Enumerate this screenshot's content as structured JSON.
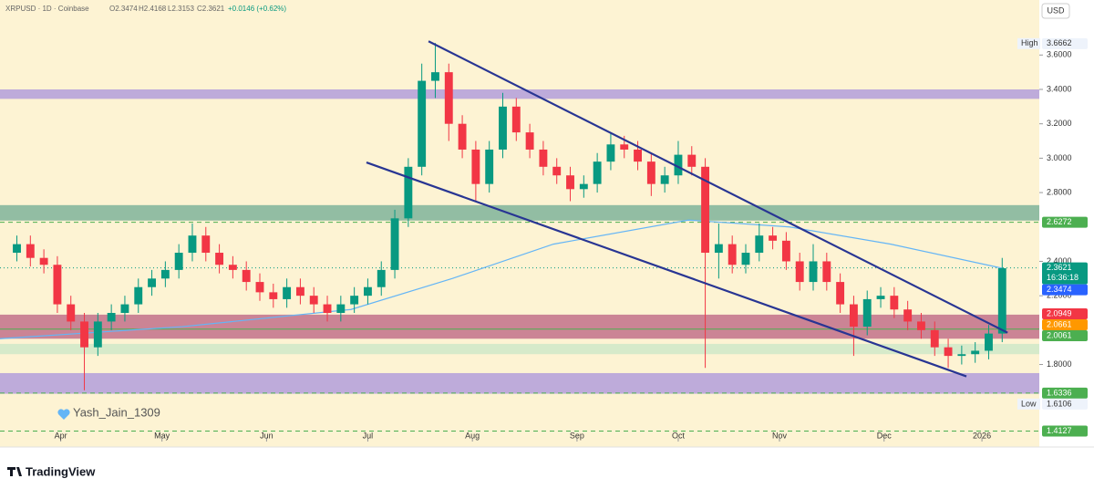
{
  "chart_data": {
    "type": "candlestick",
    "header": {
      "symbol": "XRPUSD · 1D · Coinbase",
      "open": "O2.3474",
      "high": "H2.4168",
      "low": "L2.3153",
      "close": "C2.3621",
      "change": "+0.0146 (+0.62%)"
    },
    "currency": "USD",
    "watermark": "Yash_Jain_1309",
    "brand": "TradingView",
    "up_color": "#089981",
    "down_color": "#f23645",
    "xlim": [
      -4,
      304
    ],
    "ylim": [
      1.32,
      3.92
    ],
    "xticks": [
      {
        "value": 14,
        "label": "Apr"
      },
      {
        "value": 44,
        "label": "May"
      },
      {
        "value": 75,
        "label": "Jun"
      },
      {
        "value": 105,
        "label": "Jul"
      },
      {
        "value": 136,
        "label": "Aug"
      },
      {
        "value": 167,
        "label": "Sep"
      },
      {
        "value": 197,
        "label": "Oct"
      },
      {
        "value": 227,
        "label": "Nov"
      },
      {
        "value": 258,
        "label": "Dec"
      },
      {
        "value": 287,
        "label": "2026"
      }
    ],
    "yticks": [
      {
        "value": 1.8,
        "label": "1.8000"
      },
      {
        "value": 2.2,
        "label": "2.2000"
      },
      {
        "value": 2.4,
        "label": "2.4000"
      },
      {
        "value": 2.8,
        "label": "2.8000"
      },
      {
        "value": 3.0,
        "label": "3.0000"
      },
      {
        "value": 3.2,
        "label": "3.2000"
      },
      {
        "value": 3.4,
        "label": "3.4000"
      },
      {
        "value": 3.6,
        "label": "3.6000"
      }
    ],
    "x": [
      1,
      5,
      9,
      13,
      17,
      21,
      25,
      29,
      33,
      37,
      41,
      45,
      49,
      53,
      57,
      61,
      65,
      69,
      73,
      77,
      81,
      85,
      89,
      93,
      97,
      101,
      105,
      109,
      113,
      117,
      121,
      125,
      129,
      133,
      137,
      141,
      145,
      149,
      153,
      157,
      161,
      165,
      169,
      173,
      177,
      181,
      185,
      189,
      193,
      197,
      201,
      205,
      209,
      213,
      217,
      221,
      225,
      229,
      233,
      237,
      241,
      245,
      249,
      253,
      257,
      261,
      265,
      269,
      273,
      277,
      281,
      285,
      289,
      293
    ],
    "open": [
      2.45,
      2.5,
      2.42,
      2.38,
      2.15,
      2.05,
      1.9,
      2.05,
      2.1,
      2.15,
      2.25,
      2.3,
      2.35,
      2.45,
      2.55,
      2.45,
      2.38,
      2.35,
      2.28,
      2.22,
      2.18,
      2.25,
      2.2,
      2.15,
      2.1,
      2.15,
      2.2,
      2.25,
      2.35,
      2.65,
      2.95,
      3.45,
      3.5,
      3.2,
      3.05,
      2.85,
      3.05,
      3.3,
      3.15,
      3.05,
      2.95,
      2.9,
      2.82,
      2.85,
      2.98,
      3.08,
      3.05,
      2.98,
      2.85,
      2.9,
      3.02,
      2.95,
      2.45,
      2.5,
      2.38,
      2.45,
      2.55,
      2.52,
      2.4,
      2.28,
      2.4,
      2.28,
      2.15,
      2.02,
      2.18,
      2.2,
      2.12,
      2.05,
      2.0,
      1.9,
      1.85,
      1.86,
      1.88,
      1.98
    ],
    "high": [
      2.55,
      2.55,
      2.47,
      2.43,
      2.2,
      2.1,
      2.1,
      2.15,
      2.2,
      2.3,
      2.35,
      2.4,
      2.5,
      2.62,
      2.6,
      2.5,
      2.43,
      2.4,
      2.33,
      2.27,
      2.3,
      2.3,
      2.25,
      2.2,
      2.2,
      2.25,
      2.3,
      2.4,
      2.7,
      3.0,
      3.55,
      3.67,
      3.55,
      3.25,
      3.1,
      3.1,
      3.38,
      3.35,
      3.2,
      3.1,
      3.0,
      2.95,
      2.9,
      3.03,
      3.15,
      3.13,
      3.1,
      3.03,
      2.95,
      3.1,
      3.07,
      3.0,
      2.62,
      2.55,
      2.5,
      2.62,
      2.6,
      2.57,
      2.45,
      2.5,
      2.45,
      2.33,
      2.2,
      2.23,
      2.25,
      2.25,
      2.17,
      2.1,
      2.05,
      1.95,
      1.91,
      1.93,
      2.03,
      2.42
    ],
    "low": [
      2.4,
      2.37,
      2.33,
      2.1,
      2.0,
      1.65,
      1.85,
      2.0,
      2.05,
      2.1,
      2.2,
      2.25,
      2.3,
      2.4,
      2.4,
      2.33,
      2.3,
      2.23,
      2.17,
      2.13,
      2.13,
      2.15,
      2.1,
      2.05,
      2.05,
      2.1,
      2.15,
      2.2,
      2.3,
      2.6,
      2.9,
      3.35,
      3.1,
      3.0,
      2.75,
      2.8,
      3.0,
      3.1,
      3.0,
      2.9,
      2.85,
      2.75,
      2.77,
      2.8,
      2.93,
      3.0,
      2.93,
      2.78,
      2.8,
      2.85,
      2.9,
      1.78,
      2.3,
      2.33,
      2.33,
      2.4,
      2.47,
      2.35,
      2.23,
      2.23,
      2.23,
      2.1,
      1.85,
      1.97,
      2.13,
      2.07,
      2.0,
      1.95,
      1.85,
      1.78,
      1.8,
      1.81,
      1.83,
      1.93
    ],
    "close": [
      2.5,
      2.42,
      2.38,
      2.15,
      2.05,
      1.9,
      2.05,
      2.1,
      2.15,
      2.25,
      2.3,
      2.35,
      2.45,
      2.55,
      2.45,
      2.38,
      2.35,
      2.28,
      2.22,
      2.18,
      2.25,
      2.2,
      2.15,
      2.1,
      2.15,
      2.2,
      2.25,
      2.35,
      2.65,
      2.95,
      3.45,
      3.5,
      3.2,
      3.05,
      2.85,
      3.05,
      3.3,
      3.15,
      3.05,
      2.95,
      2.9,
      2.82,
      2.85,
      2.98,
      3.08,
      3.05,
      2.98,
      2.85,
      2.9,
      3.02,
      2.95,
      2.45,
      2.5,
      2.38,
      2.45,
      2.55,
      2.52,
      2.4,
      2.28,
      2.4,
      2.28,
      2.15,
      2.02,
      2.18,
      2.2,
      2.12,
      2.05,
      2.0,
      1.9,
      1.85,
      1.86,
      1.88,
      1.98,
      2.36
    ],
    "moving_average": {
      "color": "#64b5f6",
      "x": [
        -4,
        50,
        100,
        130,
        160,
        200,
        230,
        260,
        293
      ],
      "values": [
        1.95,
        2.02,
        2.12,
        2.3,
        2.5,
        2.64,
        2.6,
        2.5,
        2.36
      ]
    },
    "zones": [
      {
        "ylim": [
          3.345,
          3.4
        ],
        "color": "#b39ddb"
      },
      {
        "ylim": [
          2.637,
          2.727
        ],
        "color": "#7fb39a"
      },
      {
        "ylim": [
          1.95,
          2.09
        ],
        "color": "#c2708a"
      },
      {
        "ylim": [
          1.86,
          1.92
        ],
        "color": "#cfe8c8"
      },
      {
        "ylim": [
          1.63,
          1.75
        ],
        "color": "#b39ddb"
      }
    ],
    "trendlines": [
      {
        "color": "#283593",
        "x": [
          123,
          294.6
        ],
        "y": [
          3.68,
          1.985
        ]
      },
      {
        "color": "#283593",
        "x": [
          104.6,
          282.4
        ],
        "y": [
          2.975,
          1.731
        ]
      }
    ],
    "price_labels": [
      {
        "value": 3.6662,
        "tag": "High",
        "color": "#eef3fb",
        "text_color": "#333333"
      },
      {
        "value": 2.6272,
        "color": "#4caf50",
        "line": "dashed"
      },
      {
        "value": 2.3621,
        "color": "#089981",
        "sub": "16:36:18",
        "line": "dotted"
      },
      {
        "value": 2.3474,
        "color": "#2962ff"
      },
      {
        "value": 2.0661,
        "color": "#ff9800"
      },
      {
        "value": 2.0949,
        "color": "#f23645"
      },
      {
        "value": 2.0061,
        "color": "#4caf50",
        "line": "solid"
      },
      {
        "value": 1.6336,
        "color": "#4caf50",
        "line": "dashed"
      },
      {
        "value": 1.6106,
        "tag": "Low",
        "color": "#eef3fb",
        "text_color": "#333333"
      },
      {
        "value": 1.4127,
        "color": "#4caf50",
        "line": "dashed"
      }
    ]
  }
}
